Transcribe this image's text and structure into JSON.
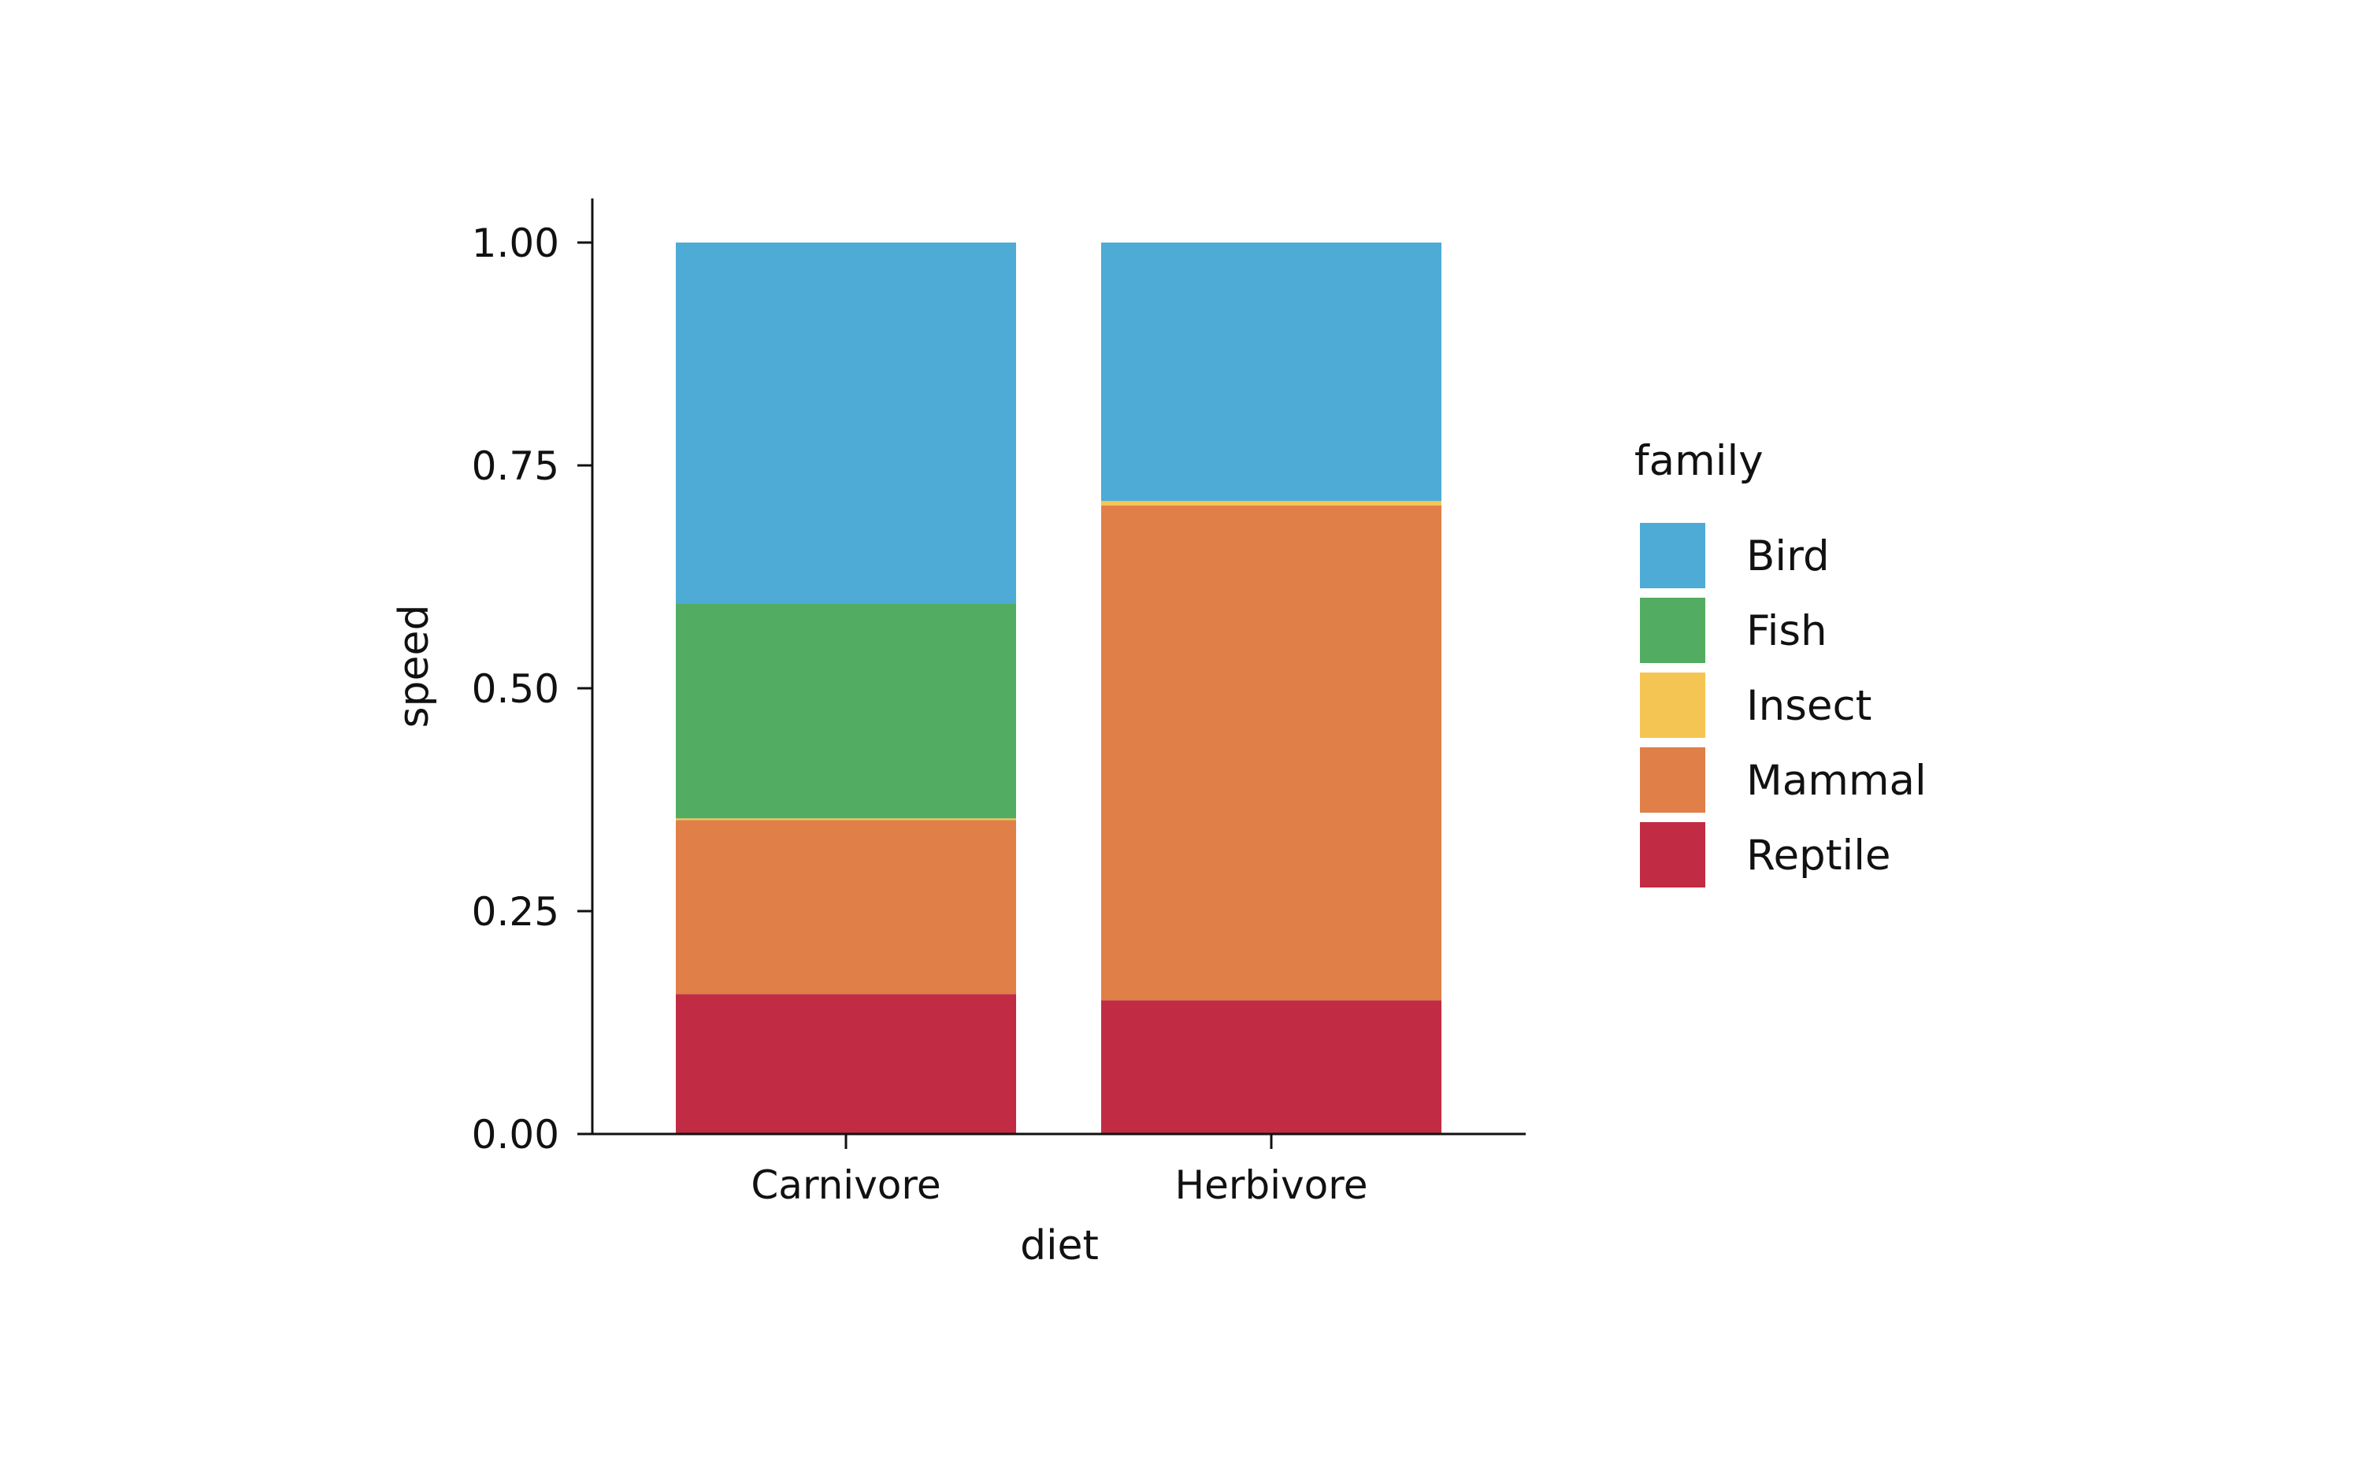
{
  "chart_data": {
    "type": "bar",
    "stacked": true,
    "title": "",
    "xlabel": "diet",
    "ylabel": "speed",
    "categories": [
      "Carnivore",
      "Herbivore"
    ],
    "ylim": [
      0,
      1.05
    ],
    "yticks": [
      "0.00",
      "0.25",
      "0.50",
      "0.75",
      "1.00"
    ],
    "ytick_values": [
      0,
      0.25,
      0.5,
      0.75,
      1.0
    ],
    "grid": false,
    "legend": {
      "title": "family",
      "placement": "right"
    },
    "series": [
      {
        "name": "Reptile",
        "color": "#C12B44",
        "values": [
          0.157,
          0.15
        ]
      },
      {
        "name": "Mammal",
        "color": "#E07F47",
        "values": [
          0.195,
          0.555
        ]
      },
      {
        "name": "Insect",
        "color": "#F5C553",
        "values": [
          0.002,
          0.005
        ]
      },
      {
        "name": "Fish",
        "color": "#52AD63",
        "values": [
          0.241,
          0.0
        ]
      },
      {
        "name": "Bird",
        "color": "#4DABD6",
        "values": [
          0.405,
          0.29
        ]
      }
    ],
    "legend_order": [
      "Bird",
      "Fish",
      "Insect",
      "Mammal",
      "Reptile"
    ]
  }
}
